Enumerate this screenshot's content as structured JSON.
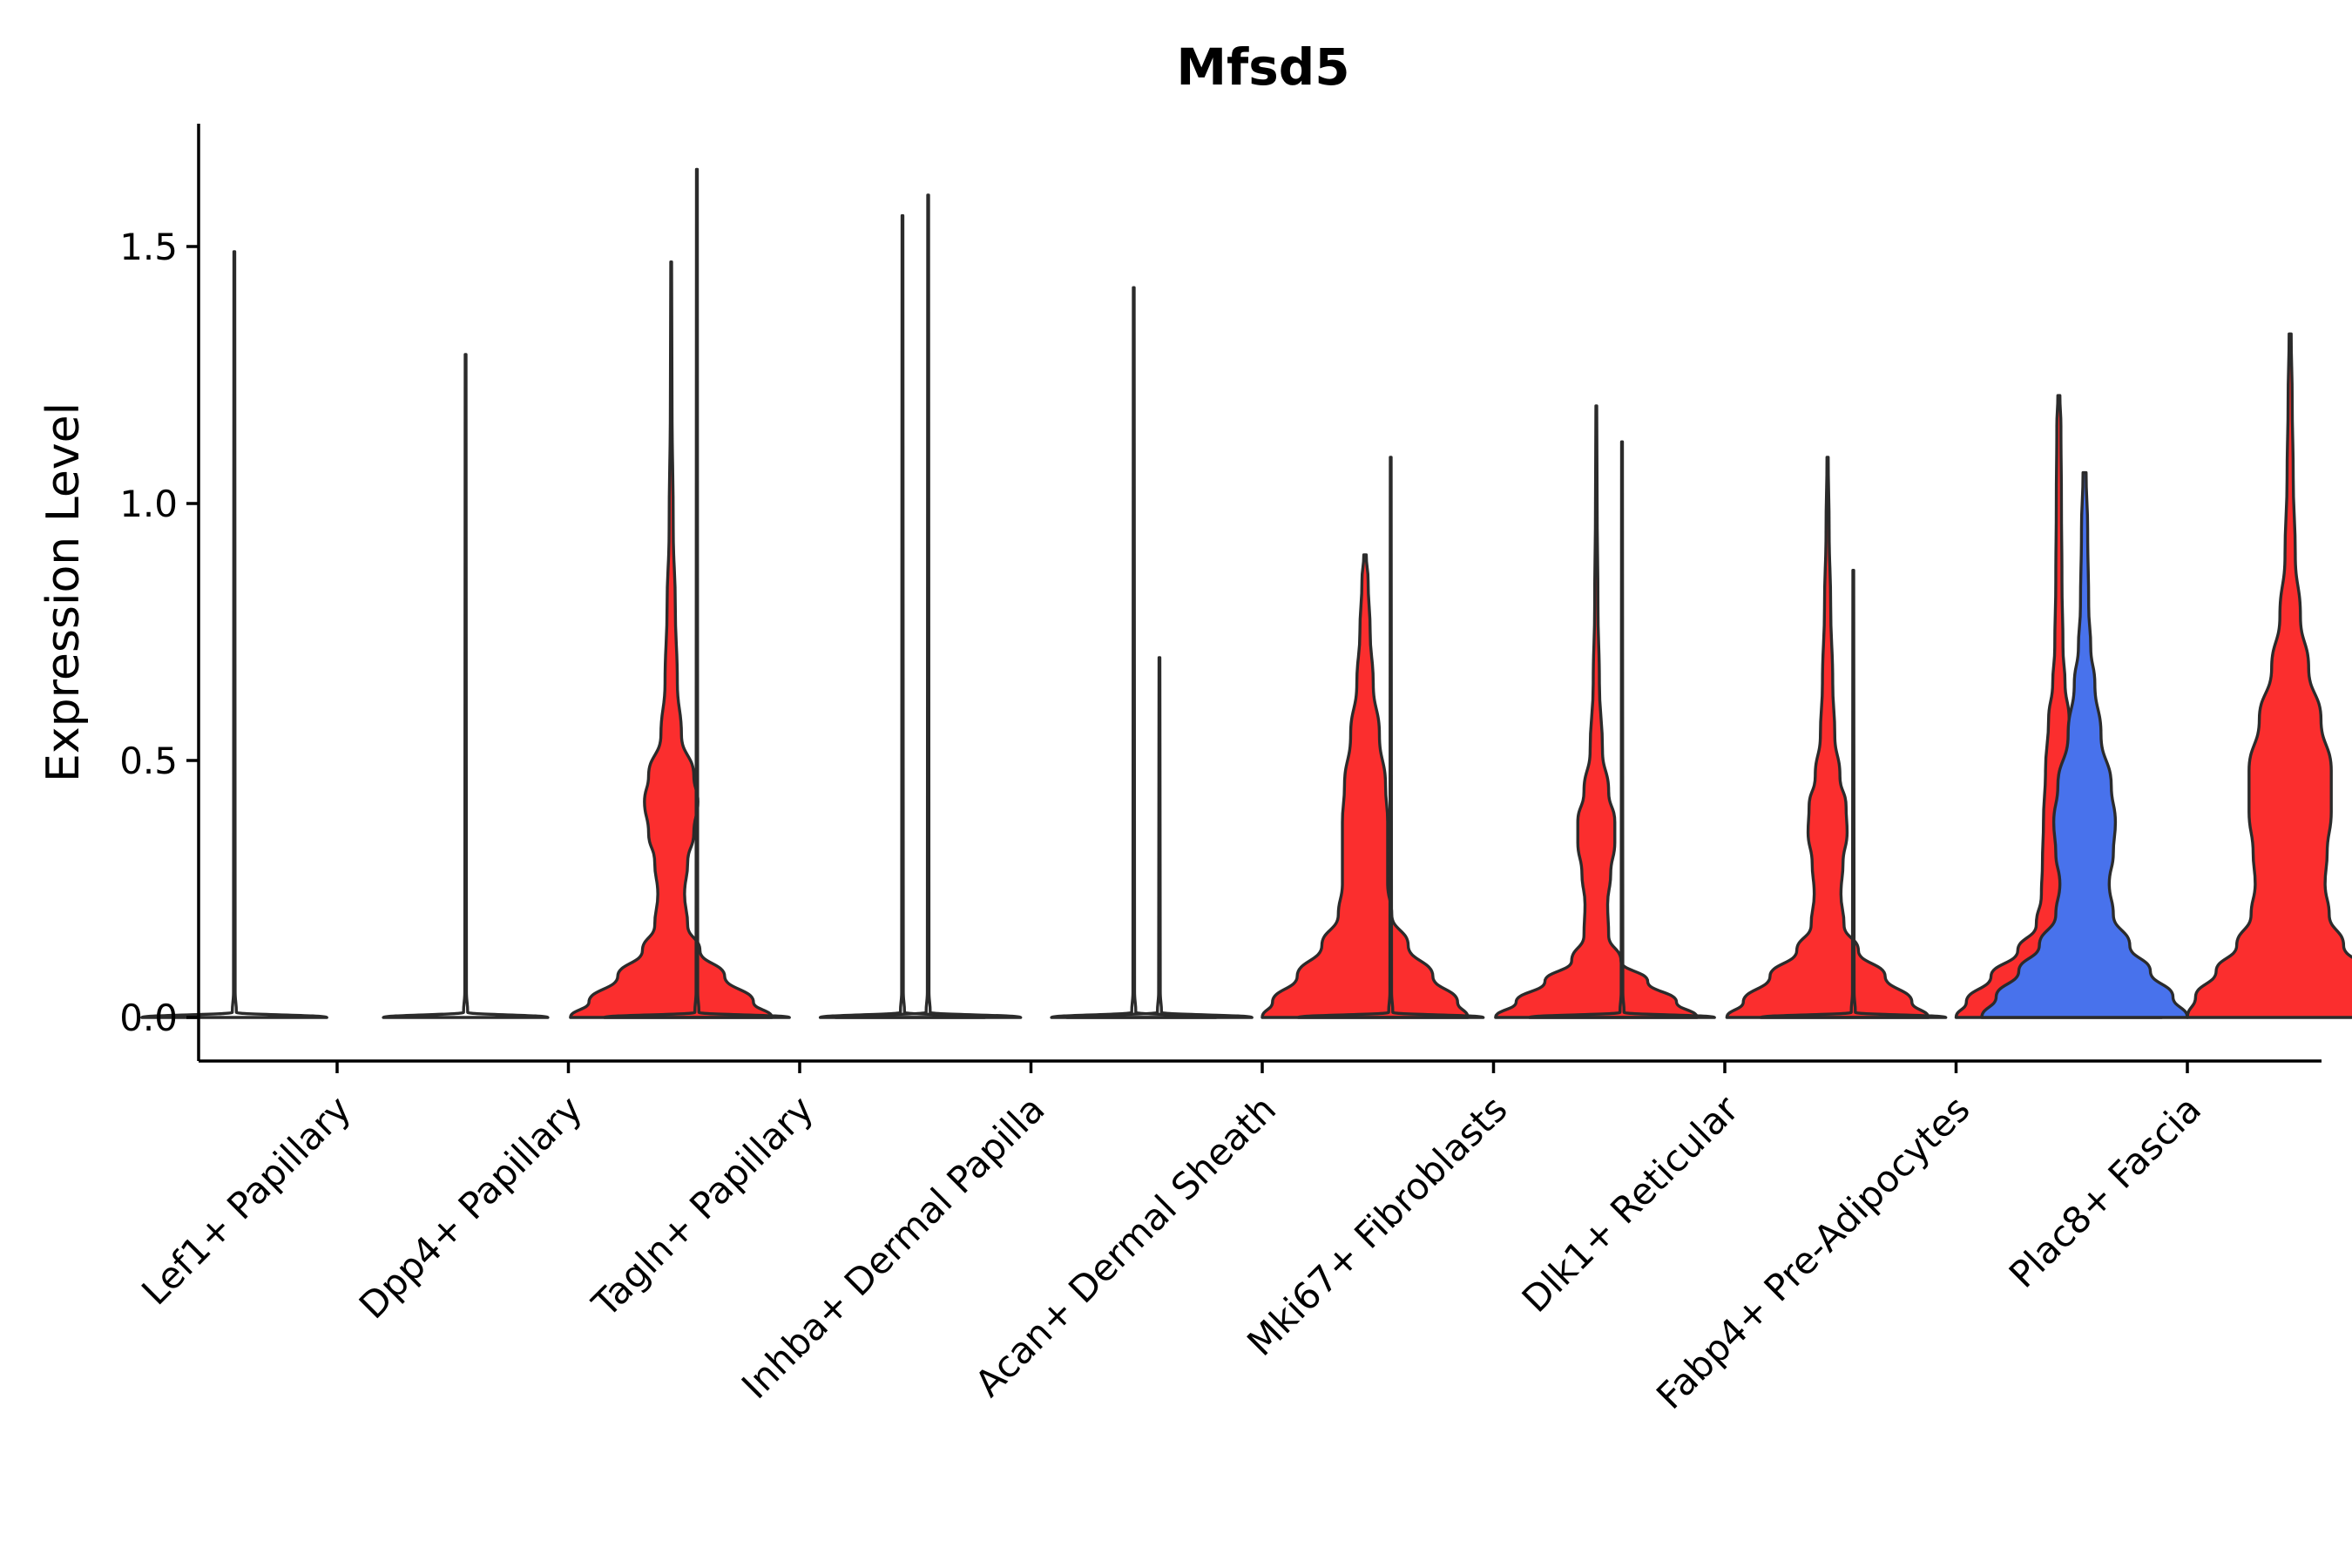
{
  "chart_data": {
    "type": "violin",
    "title": "Mfsd5",
    "xlabel": "",
    "ylabel": "Expression Level",
    "ylim": [
      -0.08,
      1.73
    ],
    "yticks": [
      0.0,
      0.5,
      1.0,
      1.5
    ],
    "ytick_labels": [
      "0.0",
      "0.5",
      "1.0",
      "1.5"
    ],
    "colors": {
      "unselected": "#1f1f1f",
      "selected_red": "#fb2e2e",
      "selected_blue": "#4872ec",
      "outline": "#2b2b2b",
      "axis": "#000000"
    },
    "categories": [
      "Lef1+ Papillary",
      "Dpp4+ Papillary",
      "Tagln+ Papillary",
      "Inhba+ Dermal Papilla",
      "Acan+ Dermal Sheath",
      "Mki67+ Fibroblasts",
      "Dlk1+ Reticular",
      "Fabp4+ Pre-Adipocytes",
      "Plac8+ Fascia"
    ],
    "violins": [
      {
        "group": "left",
        "category_index": 0,
        "fill": "none",
        "max": 1.49,
        "density": [
          [
            0,
            0.9
          ],
          [
            0.01,
            0.02
          ],
          [
            0.05,
            0.008
          ],
          [
            1.49,
            0.004
          ]
        ]
      },
      {
        "group": "right",
        "category_index": 0,
        "fill": "none",
        "max": 0.0,
        "density": [
          [
            0,
            0.0
          ]
        ]
      },
      {
        "group": "left",
        "category_index": 1,
        "fill": "none",
        "max": 1.29,
        "density": [
          [
            0,
            0.8
          ],
          [
            0.01,
            0.02
          ],
          [
            0.05,
            0.008
          ],
          [
            1.29,
            0.004
          ]
        ]
      },
      {
        "group": "right",
        "category_index": 1,
        "fill": "red",
        "max": 1.47,
        "density": [
          [
            0,
            0.98
          ],
          [
            0.03,
            0.8
          ],
          [
            0.08,
            0.52
          ],
          [
            0.13,
            0.28
          ],
          [
            0.18,
            0.16
          ],
          [
            0.24,
            0.13
          ],
          [
            0.3,
            0.16
          ],
          [
            0.36,
            0.22
          ],
          [
            0.42,
            0.26
          ],
          [
            0.47,
            0.22
          ],
          [
            0.55,
            0.1
          ],
          [
            0.65,
            0.06
          ],
          [
            0.8,
            0.04
          ],
          [
            0.95,
            0.02
          ],
          [
            1.2,
            0.008
          ],
          [
            1.47,
            0.004
          ]
        ]
      },
      {
        "group": "left",
        "category_index": 2,
        "fill": "none",
        "max": 1.65,
        "density": [
          [
            0,
            0.9
          ],
          [
            0.01,
            0.02
          ],
          [
            0.05,
            0.008
          ],
          [
            1.65,
            0.004
          ]
        ]
      },
      {
        "group": "right",
        "category_index": 2,
        "fill": "none",
        "max": 1.56,
        "density": [
          [
            0,
            0.8
          ],
          [
            0.01,
            0.02
          ],
          [
            0.05,
            0.008
          ],
          [
            1.56,
            0.004
          ]
        ]
      },
      {
        "group": "left",
        "category_index": 3,
        "fill": "none",
        "max": 1.6,
        "density": [
          [
            0,
            0.9
          ],
          [
            0.01,
            0.02
          ],
          [
            0.05,
            0.008
          ],
          [
            1.6,
            0.004
          ]
        ]
      },
      {
        "group": "right",
        "category_index": 3,
        "fill": "none",
        "max": 1.42,
        "density": [
          [
            0,
            0.8
          ],
          [
            0.01,
            0.02
          ],
          [
            0.05,
            0.008
          ],
          [
            1.42,
            0.004
          ]
        ]
      },
      {
        "group": "left",
        "category_index": 4,
        "fill": "none",
        "max": 0.7,
        "density": [
          [
            0,
            0.9
          ],
          [
            0.01,
            0.02
          ],
          [
            0.05,
            0.008
          ],
          [
            0.7,
            0.004
          ]
        ]
      },
      {
        "group": "right",
        "category_index": 4,
        "fill": "red",
        "max": 0.9,
        "density": [
          [
            0,
            1.0
          ],
          [
            0.03,
            0.9
          ],
          [
            0.08,
            0.66
          ],
          [
            0.14,
            0.42
          ],
          [
            0.2,
            0.26
          ],
          [
            0.26,
            0.22
          ],
          [
            0.32,
            0.22
          ],
          [
            0.38,
            0.22
          ],
          [
            0.45,
            0.2
          ],
          [
            0.55,
            0.14
          ],
          [
            0.65,
            0.08
          ],
          [
            0.75,
            0.05
          ],
          [
            0.85,
            0.03
          ],
          [
            0.9,
            0.012
          ]
        ]
      },
      {
        "group": "left",
        "category_index": 5,
        "fill": "none",
        "max": 1.09,
        "density": [
          [
            0,
            0.9
          ],
          [
            0.01,
            0.02
          ],
          [
            0.05,
            0.008
          ],
          [
            1.09,
            0.004
          ]
        ]
      },
      {
        "group": "right",
        "category_index": 5,
        "fill": "red",
        "max": 1.19,
        "density": [
          [
            0,
            0.98
          ],
          [
            0.03,
            0.78
          ],
          [
            0.07,
            0.5
          ],
          [
            0.11,
            0.24
          ],
          [
            0.16,
            0.12
          ],
          [
            0.22,
            0.11
          ],
          [
            0.28,
            0.14
          ],
          [
            0.34,
            0.18
          ],
          [
            0.38,
            0.18
          ],
          [
            0.44,
            0.12
          ],
          [
            0.52,
            0.06
          ],
          [
            0.65,
            0.03
          ],
          [
            0.8,
            0.016
          ],
          [
            1.0,
            0.008
          ],
          [
            1.19,
            0.004
          ]
        ]
      },
      {
        "group": "left",
        "category_index": 6,
        "fill": "none",
        "max": 1.12,
        "density": [
          [
            0,
            0.9
          ],
          [
            0.01,
            0.02
          ],
          [
            0.05,
            0.008
          ],
          [
            1.12,
            0.004
          ]
        ]
      },
      {
        "group": "right",
        "category_index": 6,
        "fill": "red",
        "max": 1.09,
        "density": [
          [
            0,
            0.98
          ],
          [
            0.03,
            0.82
          ],
          [
            0.08,
            0.56
          ],
          [
            0.13,
            0.3
          ],
          [
            0.18,
            0.16
          ],
          [
            0.24,
            0.13
          ],
          [
            0.3,
            0.15
          ],
          [
            0.36,
            0.19
          ],
          [
            0.41,
            0.18
          ],
          [
            0.47,
            0.12
          ],
          [
            0.55,
            0.07
          ],
          [
            0.65,
            0.05
          ],
          [
            0.8,
            0.03
          ],
          [
            0.95,
            0.015
          ],
          [
            1.09,
            0.006
          ]
        ]
      },
      {
        "group": "left",
        "category_index": 7,
        "fill": "none",
        "max": 0.87,
        "density": [
          [
            0,
            0.9
          ],
          [
            0.01,
            0.02
          ],
          [
            0.05,
            0.008
          ],
          [
            0.87,
            0.004
          ]
        ]
      },
      {
        "group": "right",
        "category_index": 7,
        "fill": "red",
        "max": 1.21,
        "density": [
          [
            0,
            1.0
          ],
          [
            0.03,
            0.9
          ],
          [
            0.08,
            0.66
          ],
          [
            0.13,
            0.4
          ],
          [
            0.18,
            0.22
          ],
          [
            0.24,
            0.17
          ],
          [
            0.3,
            0.16
          ],
          [
            0.38,
            0.15
          ],
          [
            0.48,
            0.13
          ],
          [
            0.58,
            0.1
          ],
          [
            0.65,
            0.06
          ],
          [
            0.72,
            0.04
          ],
          [
            0.85,
            0.03
          ],
          [
            1.0,
            0.025
          ],
          [
            1.15,
            0.02
          ],
          [
            1.21,
            0.01
          ]
        ]
      },
      {
        "group": "left",
        "category_index": 8,
        "fill": "blue",
        "max": 1.06,
        "density": [
          [
            0,
            1.0
          ],
          [
            0.04,
            0.86
          ],
          [
            0.09,
            0.64
          ],
          [
            0.14,
            0.44
          ],
          [
            0.2,
            0.28
          ],
          [
            0.26,
            0.24
          ],
          [
            0.32,
            0.28
          ],
          [
            0.38,
            0.3
          ],
          [
            0.45,
            0.26
          ],
          [
            0.55,
            0.16
          ],
          [
            0.65,
            0.1
          ],
          [
            0.72,
            0.06
          ],
          [
            0.8,
            0.04
          ],
          [
            0.95,
            0.03
          ],
          [
            1.06,
            0.015
          ]
        ]
      },
      {
        "group": "right",
        "category_index": 8,
        "fill": "red",
        "max": 1.33,
        "density": [
          [
            0,
            1.0
          ],
          [
            0.04,
            0.92
          ],
          [
            0.09,
            0.72
          ],
          [
            0.14,
            0.52
          ],
          [
            0.2,
            0.38
          ],
          [
            0.26,
            0.34
          ],
          [
            0.32,
            0.36
          ],
          [
            0.4,
            0.4
          ],
          [
            0.48,
            0.4
          ],
          [
            0.58,
            0.3
          ],
          [
            0.68,
            0.18
          ],
          [
            0.78,
            0.1
          ],
          [
            0.9,
            0.05
          ],
          [
            1.05,
            0.03
          ],
          [
            1.2,
            0.02
          ],
          [
            1.33,
            0.01
          ]
        ]
      }
    ]
  }
}
